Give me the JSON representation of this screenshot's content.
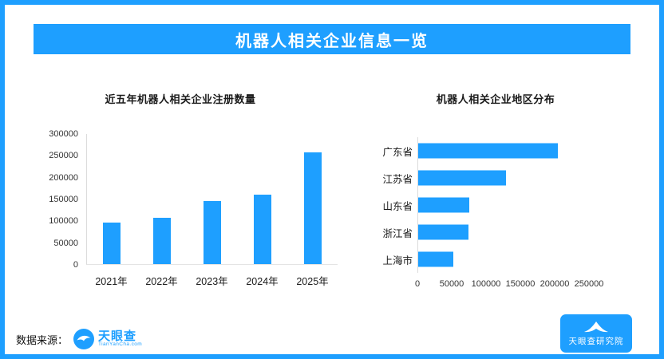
{
  "colors": {
    "accent": "#1e9fff",
    "banner_text": "#ffffff",
    "axis_text": "#333333"
  },
  "header": {
    "title": "机器人相关企业信息一览"
  },
  "chart_data": [
    {
      "type": "bar",
      "orientation": "vertical",
      "title": "近五年机器人相关企业注册数量",
      "categories": [
        "2021年",
        "2022年",
        "2023年",
        "2024年",
        "2025年"
      ],
      "values": [
        95000,
        107000,
        146000,
        160000,
        257000
      ],
      "ylim": [
        0,
        300000
      ],
      "yticks": [
        0,
        50000,
        100000,
        150000,
        200000,
        250000,
        300000
      ],
      "bar_color": "#1e9fff",
      "grid": false,
      "legend": "none"
    },
    {
      "type": "bar",
      "orientation": "horizontal",
      "title": "机器人相关企业地区分布",
      "categories": [
        "广东省",
        "江苏省",
        "山东省",
        "浙江省",
        "上海市"
      ],
      "values": [
        205000,
        128000,
        75000,
        74000,
        51000
      ],
      "xlim": [
        0,
        250000
      ],
      "xticks": [
        0,
        50000,
        100000,
        150000,
        200000,
        250000
      ],
      "bar_color": "#1e9fff",
      "grid": false,
      "legend": "none"
    }
  ],
  "footer": {
    "source_label": "数据来源：",
    "logo": {
      "name": "天眼查",
      "subtext": "TianYanCha.com"
    },
    "institute": {
      "name": "天眼查研究院"
    }
  }
}
